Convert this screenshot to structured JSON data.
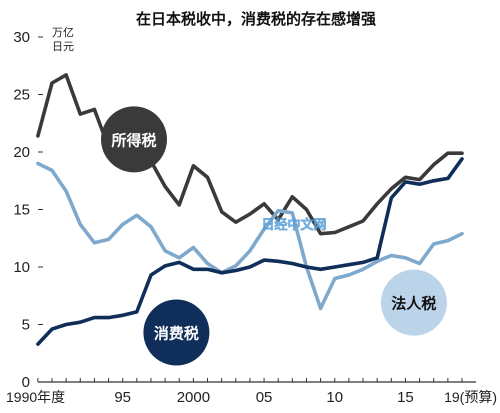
{
  "chart_data": {
    "type": "line",
    "title": "在日本税收中，消费税的存在感增强",
    "unit_label": [
      "万亿",
      "日元"
    ],
    "watermark": "日经中文网",
    "ylim": [
      0,
      30
    ],
    "yticks": [
      0,
      5,
      10,
      15,
      20,
      25,
      30
    ],
    "xlim": [
      1989,
      2019
    ],
    "xticks": [
      {
        "x": 1990,
        "label": "1990年度"
      },
      {
        "x": 1995,
        "label": "95"
      },
      {
        "x": 2000,
        "label": "2000"
      },
      {
        "x": 2005,
        "label": "05"
      },
      {
        "x": 2010,
        "label": "10"
      },
      {
        "x": 2015,
        "label": "15"
      },
      {
        "x": 2019,
        "label": "19(预算)"
      }
    ],
    "x": [
      1989,
      1990,
      1991,
      1992,
      1993,
      1994,
      1995,
      1996,
      1997,
      1998,
      1999,
      2000,
      2001,
      2002,
      2003,
      2004,
      2005,
      2006,
      2007,
      2008,
      2009,
      2010,
      2011,
      2012,
      2013,
      2014,
      2015,
      2016,
      2017,
      2018,
      2019
    ],
    "series": [
      {
        "name": "所得税",
        "color": "#3a3a3a",
        "values": [
          21.4,
          26.0,
          26.7,
          23.3,
          23.7,
          20.4,
          19.5,
          19.0,
          19.2,
          17.0,
          15.4,
          18.8,
          17.8,
          14.8,
          13.9,
          14.6,
          15.5,
          14.1,
          16.1,
          15.0,
          12.9,
          13.0,
          13.5,
          14.0,
          15.5,
          16.8,
          17.8,
          17.6,
          18.9,
          19.9,
          19.9
        ],
        "badge": {
          "label": "所得税",
          "bg": "#3a3a3a",
          "fg": "#ffffff",
          "x": 1995.8,
          "y": 21.1
        }
      },
      {
        "name": "法人税",
        "color": "#7fa9cc",
        "values": [
          19.0,
          18.4,
          16.6,
          13.7,
          12.1,
          12.4,
          13.7,
          14.5,
          13.5,
          11.4,
          10.8,
          11.7,
          10.3,
          9.5,
          10.1,
          11.4,
          13.3,
          14.9,
          14.7,
          10.0,
          6.4,
          9.0,
          9.3,
          9.8,
          10.5,
          11.0,
          10.8,
          10.3,
          12.0,
          12.3,
          12.9
        ],
        "badge": {
          "label": "法人税",
          "bg": "#bcd4ea",
          "fg": "#111111",
          "x": 2015.6,
          "y": 6.9
        }
      },
      {
        "name": "消费税",
        "color": "#0f2f5a",
        "values": [
          3.3,
          4.6,
          5.0,
          5.2,
          5.6,
          5.6,
          5.8,
          6.1,
          9.3,
          10.1,
          10.4,
          9.8,
          9.8,
          9.5,
          9.7,
          10.0,
          10.6,
          10.5,
          10.3,
          10.0,
          9.8,
          10.0,
          10.2,
          10.4,
          10.8,
          16.0,
          17.4,
          17.2,
          17.5,
          17.7,
          19.4
        ],
        "badge": {
          "label": "消费税",
          "bg": "#0f2f5a",
          "fg": "#ffffff",
          "x": 1998.8,
          "y": 4.3
        }
      }
    ]
  }
}
